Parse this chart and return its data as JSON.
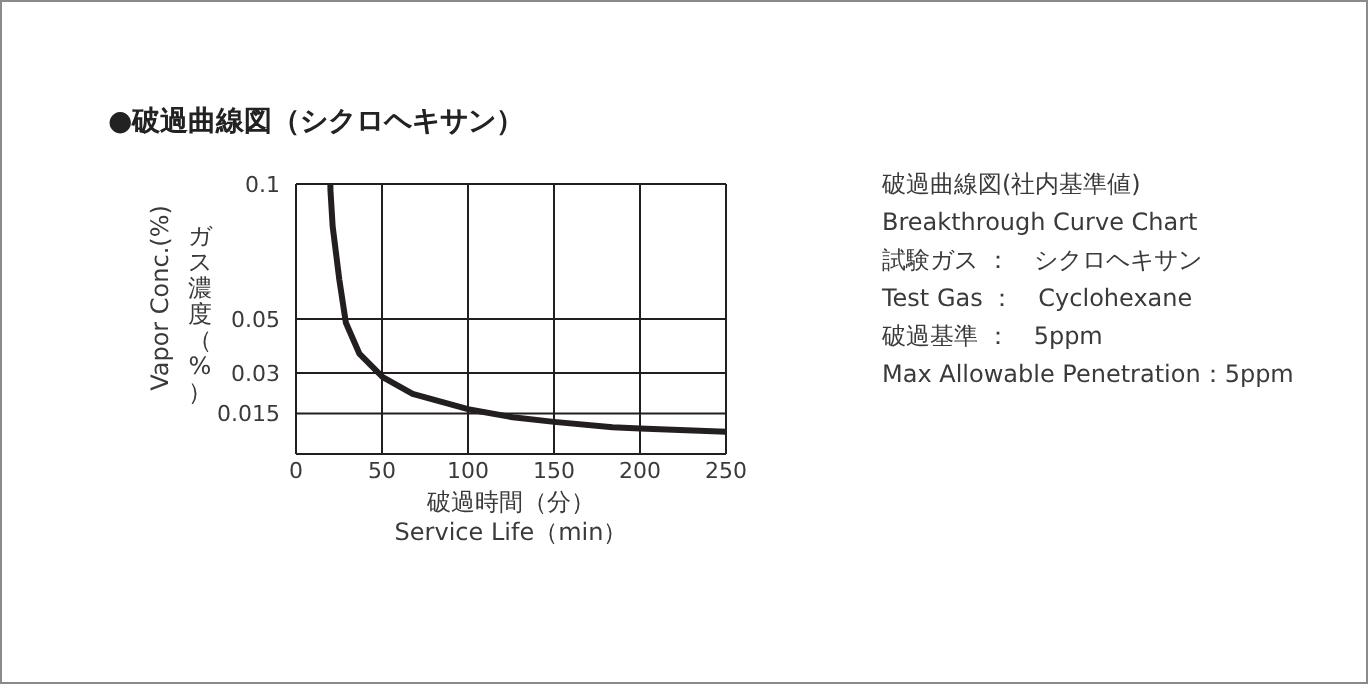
{
  "chart_data": {
    "type": "line",
    "title": "●破過曲線図（シクロヘキサン）",
    "xlabel": "破過時間（分）\nService Life（min）",
    "ylabel": "Vapor Conc.(%)\nガス濃度（%）",
    "annotations": [
      "破過曲線図(社内基準値)",
      "Breakthrough Curve Chart",
      "試験ガス ：　シクロヘキサン",
      "Test Gas ：　Cyclohexane",
      "破過基準 ：　5ppm",
      "Max Allowable Penetration：5ppm"
    ],
    "series": [
      {
        "color": "#231f20",
        "x": [
          20,
          20,
          21.3,
          25.2,
          29,
          36.8,
          50.4,
          67.8,
          100,
          126,
          150,
          184,
          200,
          250
        ],
        "values": [
          0.1,
          0.098,
          0.0844,
          0.0645,
          0.0486,
          0.0372,
          0.0285,
          0.0223,
          0.0166,
          0.0136,
          0.0119,
          0.0099,
          0.0094,
          0.0082
        ]
      }
    ],
    "xlim": [
      0,
      250
    ],
    "xticks": [
      0,
      50,
      100,
      150,
      200,
      250
    ],
    "ylim": [
      0,
      0.1
    ],
    "yticks": [
      0.015,
      0.03,
      0.05,
      0.1
    ],
    "grid": true,
    "marker": "none",
    "line_style": "solid"
  }
}
